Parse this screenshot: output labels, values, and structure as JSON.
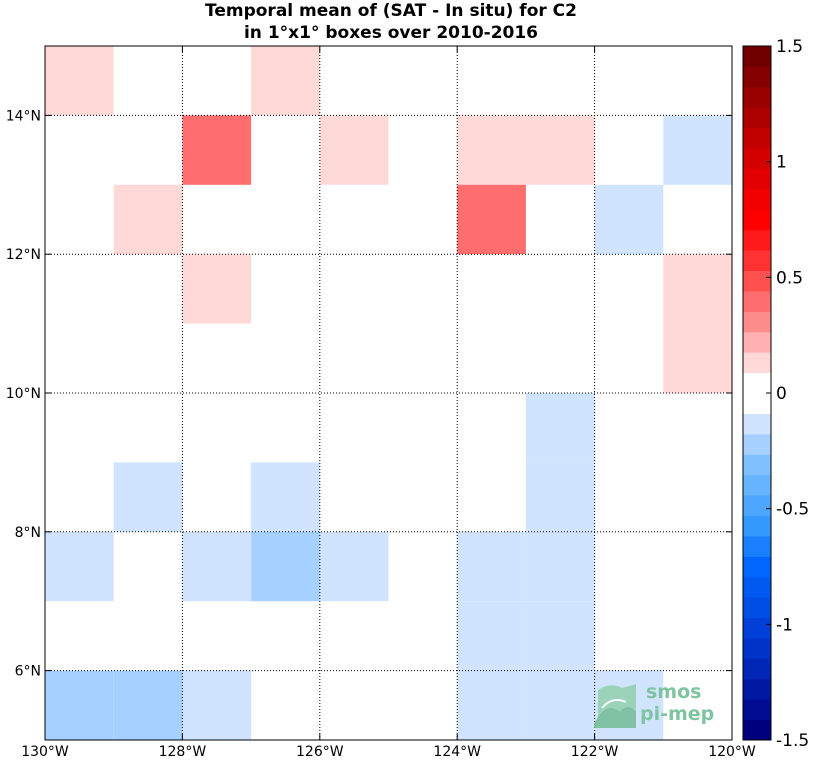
{
  "chart_data": {
    "type": "heatmap",
    "title_lines": [
      "Temporal mean of (SAT - In situ) for C2",
      "in 1°x1° boxes over 2010-2016"
    ],
    "x_range": [
      -130,
      -120
    ],
    "y_range": [
      5,
      15
    ],
    "x_ticks": [
      {
        "value": -130,
        "label": "130°W"
      },
      {
        "value": -128,
        "label": "128°W"
      },
      {
        "value": -126,
        "label": "126°W"
      },
      {
        "value": -124,
        "label": "124°W"
      },
      {
        "value": -122,
        "label": "122°W"
      },
      {
        "value": -120,
        "label": "120°W"
      }
    ],
    "y_ticks": [
      {
        "value": 6,
        "label": "6°N"
      },
      {
        "value": 8,
        "label": "8°N"
      },
      {
        "value": 10,
        "label": "10°N"
      },
      {
        "value": 12,
        "label": "12°N"
      },
      {
        "value": 14,
        "label": "14°N"
      }
    ],
    "grid": true,
    "cells": [
      {
        "lon": -130,
        "lat": 14,
        "value": 0.125
      },
      {
        "lon": -127,
        "lat": 14,
        "value": 0.125
      },
      {
        "lon": -128,
        "lat": 13,
        "value": 0.375
      },
      {
        "lon": -126,
        "lat": 13,
        "value": 0.125
      },
      {
        "lon": -124,
        "lat": 13,
        "value": 0.125
      },
      {
        "lon": -123,
        "lat": 13,
        "value": 0.125
      },
      {
        "lon": -121,
        "lat": 13,
        "value": -0.125
      },
      {
        "lon": -129,
        "lat": 12,
        "value": 0.125
      },
      {
        "lon": -124,
        "lat": 12,
        "value": 0.375
      },
      {
        "lon": -122,
        "lat": 12,
        "value": -0.125
      },
      {
        "lon": -128,
        "lat": 11,
        "value": 0.125
      },
      {
        "lon": -121,
        "lat": 11,
        "value": 0.125
      },
      {
        "lon": -121,
        "lat": 10,
        "value": 0.125
      },
      {
        "lon": -123,
        "lat": 9,
        "value": -0.125
      },
      {
        "lon": -129,
        "lat": 8,
        "value": -0.125
      },
      {
        "lon": -127,
        "lat": 8,
        "value": -0.125
      },
      {
        "lon": -123,
        "lat": 8,
        "value": -0.125
      },
      {
        "lon": -130,
        "lat": 7,
        "value": -0.125
      },
      {
        "lon": -128,
        "lat": 7,
        "value": -0.125
      },
      {
        "lon": -127,
        "lat": 7,
        "value": -0.25
      },
      {
        "lon": -126,
        "lat": 7,
        "value": -0.125
      },
      {
        "lon": -124,
        "lat": 7,
        "value": -0.125
      },
      {
        "lon": -123,
        "lat": 7,
        "value": -0.125
      },
      {
        "lon": -124,
        "lat": 6,
        "value": -0.125
      },
      {
        "lon": -123,
        "lat": 6,
        "value": -0.125
      },
      {
        "lon": -124,
        "lat": 5,
        "value": -0.125
      },
      {
        "lon": -123,
        "lat": 5,
        "value": -0.125
      },
      {
        "lon": -130,
        "lat": 5,
        "value": -0.25
      },
      {
        "lon": -129,
        "lat": 5,
        "value": -0.25
      },
      {
        "lon": -128,
        "lat": 5,
        "value": -0.125
      },
      {
        "lon": -122,
        "lat": 5,
        "value": -0.125
      }
    ],
    "colorbar": {
      "range": [
        -1.5,
        1.5
      ],
      "ticks": [
        {
          "value": 1.5,
          "label": "1.5"
        },
        {
          "value": 1,
          "label": "1"
        },
        {
          "value": 0.5,
          "label": "0.5"
        },
        {
          "value": 0,
          "label": "0"
        },
        {
          "value": -0.5,
          "label": "-0.5"
        },
        {
          "value": -1,
          "label": "-1"
        },
        {
          "value": -1.5,
          "label": "-1.5"
        }
      ],
      "colors_bottom_to_top": [
        "#00007f",
        "#000c91",
        "#0019a3",
        "#0026b5",
        "#0033c7",
        "#0040d9",
        "#004de6",
        "#005af2",
        "#0066ff",
        "#1a7fff",
        "#3399ff",
        "#4da6ff",
        "#66b3ff",
        "#80c0ff",
        "#a6d0ff",
        "#d0e4ff",
        "#ffffff",
        "#ffffff",
        "#ffd8d8",
        "#ffb0b0",
        "#ff8c8c",
        "#ff6e6e",
        "#ff5050",
        "#ff3232",
        "#ff1a1a",
        "#ff0000",
        "#f20000",
        "#e30000",
        "#d40000",
        "#c20000",
        "#ad0000",
        "#990000",
        "#850000",
        "#700000"
      ]
    }
  },
  "logo": {
    "line1": "smos",
    "line2": "pi-mep"
  }
}
